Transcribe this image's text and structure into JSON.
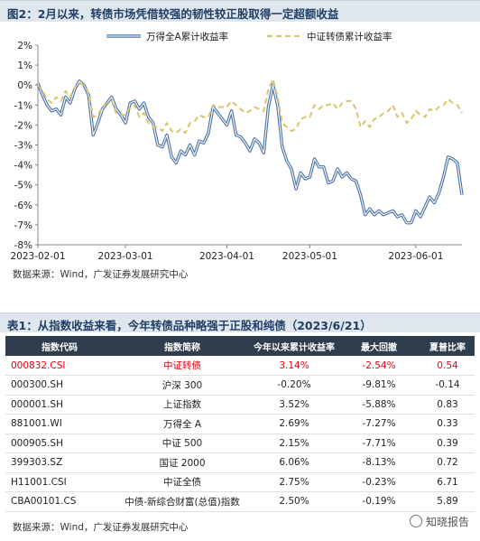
{
  "figure": {
    "title": "图2：2月以来，转债市场凭借较强的韧性较正股取得一定超额收益",
    "source": "数据来源：Wind，广发证券发展研究中心"
  },
  "chart_data": {
    "type": "line",
    "ylim": [
      -8,
      2
    ],
    "yticks": [
      2,
      1,
      0,
      -1,
      -2,
      -3,
      -4,
      -5,
      -6,
      -7,
      -8
    ],
    "ytick_labels": [
      "2%",
      "1%",
      "0%",
      "-1%",
      "-2%",
      "-3%",
      "-4%",
      "-5%",
      "-6%",
      "-7%",
      "-8%"
    ],
    "xticks": [
      "2023-02-01",
      "2023-03-01",
      "2023-04-01",
      "2023-05-01",
      "2023-06-01"
    ],
    "xtick_index": [
      0,
      19,
      41,
      59,
      82
    ],
    "legend_position": "top",
    "series": [
      {
        "name": "万得全A累计收益率",
        "style": "double-line",
        "color": "#4d74a8",
        "values": [
          0.1,
          -0.5,
          -1.0,
          -1.3,
          -1.2,
          -1.5,
          -0.6,
          -0.9,
          -0.2,
          0.2,
          0.0,
          -0.5,
          -2.5,
          -1.9,
          -1.2,
          -0.9,
          -0.6,
          -1.2,
          -1.5,
          -1.9,
          -0.9,
          -0.8,
          -1.2,
          -0.9,
          -1.6,
          -1.9,
          -3.0,
          -3.1,
          -2.5,
          -3.6,
          -3.9,
          -3.3,
          -3.5,
          -3.0,
          -3.5,
          -2.8,
          -2.9,
          -2.4,
          -1.1,
          -1.4,
          -1.7,
          -2.0,
          -1.3,
          -2.5,
          -2.6,
          -2.9,
          -3.3,
          -2.7,
          -2.9,
          -3.4,
          -1.1,
          0.0,
          -1.0,
          -3.1,
          -3.8,
          -4.2,
          -5.2,
          -4.4,
          -4.7,
          -4.6,
          -3.7,
          -4.1,
          -4.1,
          -4.9,
          -4.8,
          -4.2,
          -4.6,
          -4.4,
          -4.7,
          -4.8,
          -5.5,
          -6.5,
          -6.2,
          -6.5,
          -6.3,
          -6.5,
          -6.4,
          -6.3,
          -6.6,
          -6.5,
          -6.9,
          -6.9,
          -6.3,
          -6.6,
          -6.1,
          -5.6,
          -5.9,
          -5.4,
          -4.6,
          -3.6,
          -3.7,
          -3.9,
          -5.5
        ]
      },
      {
        "name": "中证转债累计收益率",
        "style": "dashed",
        "color": "#dcc36c",
        "values": [
          0.0,
          -0.3,
          -0.7,
          -0.9,
          -0.6,
          -0.8,
          -0.3,
          -0.6,
          -0.1,
          0.1,
          0.0,
          -0.4,
          -1.6,
          -1.5,
          -1.1,
          -0.9,
          -0.8,
          -1.4,
          -1.5,
          -1.5,
          -1.1,
          -1.0,
          -1.6,
          -1.4,
          -1.9,
          -2.1,
          -2.1,
          -2.3,
          -1.9,
          -2.3,
          -2.4,
          -2.2,
          -2.4,
          -1.9,
          -1.8,
          -1.5,
          -1.6,
          -1.6,
          -1.0,
          -1.1,
          -1.1,
          -1.1,
          -0.8,
          -1.0,
          -1.2,
          -1.4,
          -1.3,
          -1.1,
          -1.2,
          -1.3,
          -0.2,
          0.3,
          -0.6,
          -1.9,
          -2.1,
          -2.3,
          -2.2,
          -1.7,
          -1.6,
          -1.6,
          -1.0,
          -1.2,
          -1.0,
          -1.0,
          -0.9,
          -1.2,
          -0.9,
          -0.8,
          -0.8,
          -1.2,
          -2.1,
          -1.8,
          -2.1,
          -1.7,
          -1.6,
          -1.4,
          -1.3,
          -1.0,
          -1.6,
          -1.4,
          -1.9,
          -1.7,
          -1.3,
          -1.5,
          -1.6,
          -1.2,
          -1.3,
          -1.1,
          -1.0,
          -0.7,
          -0.9,
          -1.0,
          -1.4
        ]
      }
    ]
  },
  "table": {
    "title": "表1：从指数收益来看，今年转债品种略强于正股和纯债（2023/6/21）",
    "headers": [
      "指数代码",
      "指数简称",
      "今年以来累计收益率",
      "最大回撤",
      "夏普比率"
    ],
    "rows": [
      {
        "code": "000832.CSI",
        "name": "中证转债",
        "ytd": "3.14%",
        "max_dd": "-2.54%",
        "sharpe": "0.54"
      },
      {
        "code": "000300.SH",
        "name": "沪深 300",
        "ytd": "-0.20%",
        "max_dd": "-9.81%",
        "sharpe": "-0.14"
      },
      {
        "code": "000001.SH",
        "name": "上证指数",
        "ytd": "3.52%",
        "max_dd": "-5.88%",
        "sharpe": "0.83"
      },
      {
        "code": "881001.WI",
        "name": "万得全 A",
        "ytd": "2.69%",
        "max_dd": "-7.27%",
        "sharpe": "0.33"
      },
      {
        "code": "000905.SH",
        "name": "中证 500",
        "ytd": "2.15%",
        "max_dd": "-7.71%",
        "sharpe": "0.39"
      },
      {
        "code": "399303.SZ",
        "name": "国证 2000",
        "ytd": "6.06%",
        "max_dd": "-8.13%",
        "sharpe": "0.72"
      },
      {
        "code": "H11001.CSI",
        "name": "中证全债",
        "ytd": "2.75%",
        "max_dd": "-0.23%",
        "sharpe": "6.71"
      },
      {
        "code": "CBA00101.CS",
        "name": "中债-新综合财富(总值)指数",
        "ytd": "2.50%",
        "max_dd": "-0.19%",
        "sharpe": "5.89"
      }
    ],
    "highlight_row": 0,
    "highlight_color": "#e60012",
    "source": "数据来源：Wind，广发证券发展研究中心"
  },
  "watermark": {
    "text": "知晓报告",
    "icon": "wechat-icon"
  }
}
